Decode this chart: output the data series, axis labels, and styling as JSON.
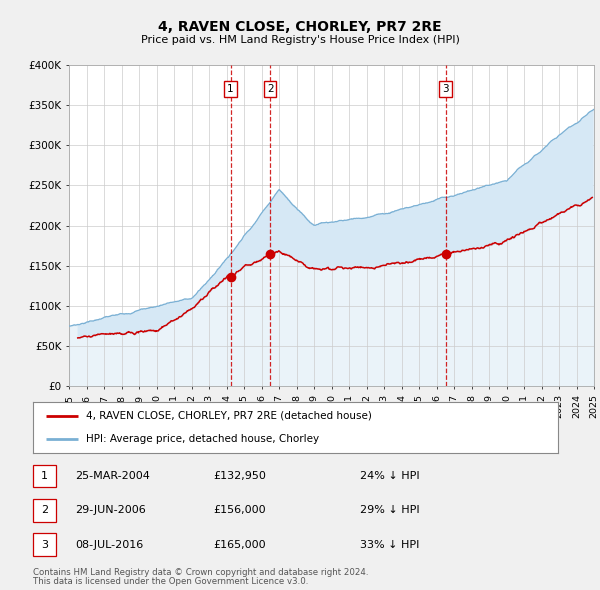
{
  "title": "4, RAVEN CLOSE, CHORLEY, PR7 2RE",
  "subtitle": "Price paid vs. HM Land Registry's House Price Index (HPI)",
  "xmin": 1995,
  "xmax": 2025,
  "ymin": 0,
  "ymax": 400000,
  "yticks": [
    0,
    50000,
    100000,
    150000,
    200000,
    250000,
    300000,
    350000,
    400000
  ],
  "ytick_labels": [
    "£0",
    "£50K",
    "£100K",
    "£150K",
    "£200K",
    "£250K",
    "£300K",
    "£350K",
    "£400K"
  ],
  "property_color": "#cc0000",
  "hpi_color": "#7ab0d4",
  "hpi_fill_color": "#d6e8f5",
  "vline_color": "#cc0000",
  "transactions": [
    {
      "num": 1,
      "date": "25-MAR-2004",
      "x": 2004.23,
      "price": 132950,
      "pct": "24%"
    },
    {
      "num": 2,
      "date": "29-JUN-2006",
      "x": 2006.5,
      "price": 156000,
      "pct": "29%"
    },
    {
      "num": 3,
      "date": "08-JUL-2016",
      "x": 2016.52,
      "price": 165000,
      "pct": "33%"
    }
  ],
  "legend_property_label": "4, RAVEN CLOSE, CHORLEY, PR7 2RE (detached house)",
  "legend_hpi_label": "HPI: Average price, detached house, Chorley",
  "footer1": "Contains HM Land Registry data © Crown copyright and database right 2024.",
  "footer2": "This data is licensed under the Open Government Licence v3.0.",
  "background_color": "#f0f0f0",
  "plot_bg_color": "#ffffff"
}
